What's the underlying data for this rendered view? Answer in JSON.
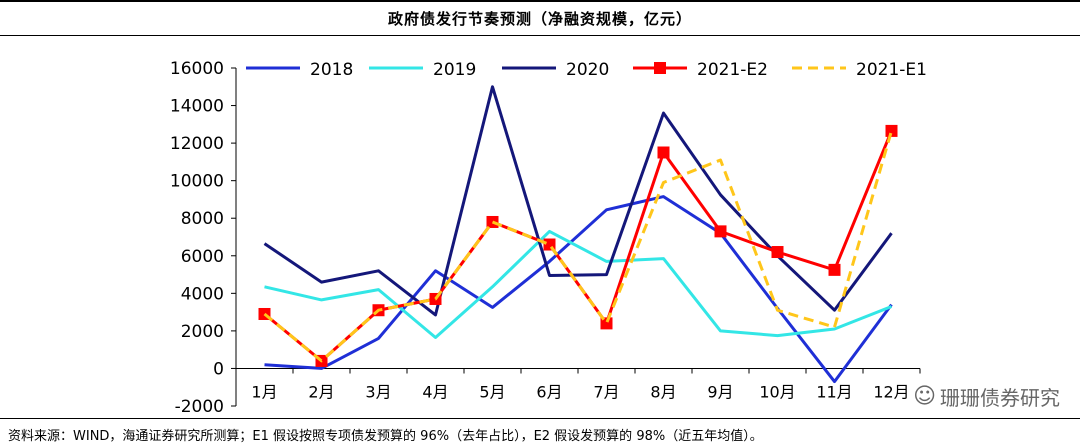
{
  "title": "政府债发行节奏预测（净融资规模，亿元）",
  "source": "资料来源：WIND，海通证券研究所测算；E1 假设按照专项债发预算的 96%（去年占比），E2 假设发预算的 98%（近五年均值）。",
  "watermark": {
    "icon": "wechat-icon",
    "text": "珊珊债券研究"
  },
  "chart_data": {
    "type": "line",
    "title": "政府债发行节奏预测（净融资规模，亿元）",
    "xlabel": "",
    "ylabel": "",
    "categories": [
      "1月",
      "2月",
      "3月",
      "4月",
      "5月",
      "6月",
      "7月",
      "8月",
      "9月",
      "10月",
      "11月",
      "12月"
    ],
    "ylim": [
      -2000,
      16000
    ],
    "yticks": [
      -2000,
      0,
      2000,
      4000,
      6000,
      8000,
      10000,
      12000,
      14000,
      16000
    ],
    "legend_position": "top",
    "series": [
      {
        "name": "2018",
        "color": "#1f2fd6",
        "style": "solid",
        "values": [
          200,
          0,
          1600,
          5200,
          3250,
          5700,
          8450,
          9150,
          7200,
          3200,
          -700,
          3400
        ]
      },
      {
        "name": "2019",
        "color": "#33e6e6",
        "style": "solid",
        "values": [
          4350,
          3650,
          4200,
          1650,
          4350,
          7300,
          5700,
          5850,
          2000,
          1750,
          2100,
          3300
        ]
      },
      {
        "name": "2020",
        "color": "#14177a",
        "style": "solid",
        "values": [
          6650,
          4600,
          5200,
          2850,
          15000,
          4950,
          5000,
          13600,
          9250,
          6000,
          3100,
          7200
        ]
      },
      {
        "name": "2021-E2",
        "color": "#ff0000",
        "style": "solid-marker",
        "values": [
          2900,
          400,
          3100,
          3700,
          7800,
          6600,
          2400,
          11500,
          7300,
          6200,
          5250,
          12650
        ]
      },
      {
        "name": "2021-E1",
        "color": "#ffc61a",
        "style": "dashed",
        "values": [
          2900,
          400,
          3100,
          3700,
          7800,
          6600,
          2400,
          9900,
          11100,
          3100,
          2200,
          12650
        ]
      }
    ]
  }
}
